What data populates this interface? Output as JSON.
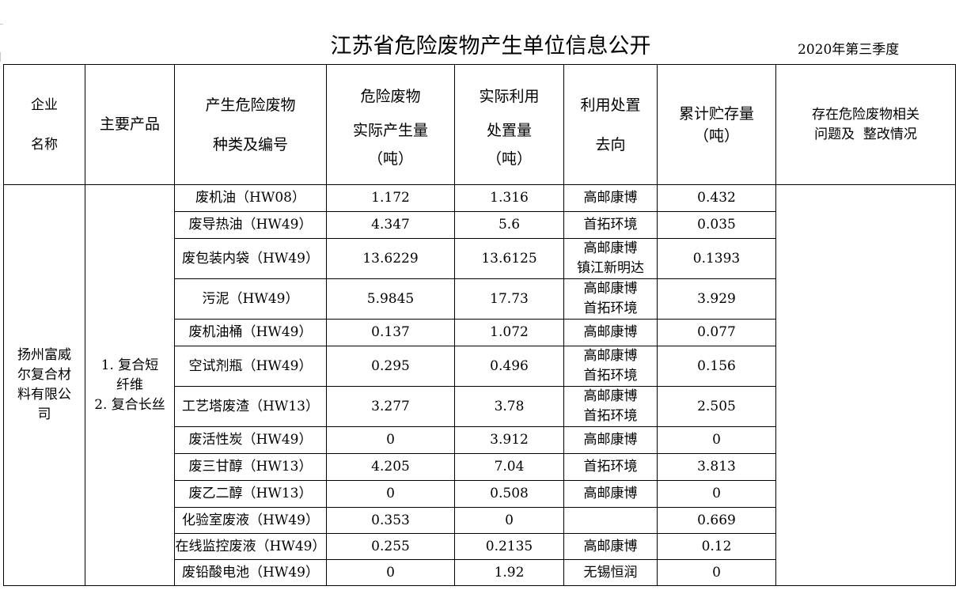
{
  "title": "江苏省危险废物产生单位信息公开",
  "season": "2020年第三季度",
  "headers": {
    "company": [
      "企业",
      "名称"
    ],
    "product": "主要产品",
    "waste_type": [
      "产生危险废物",
      "种类及编号"
    ],
    "generated": [
      "危险废物",
      "实际产生量",
      "（吨）"
    ],
    "utilized": [
      "实际利用",
      "处置量",
      "（吨）"
    ],
    "destination": [
      "利用处置",
      "去向"
    ],
    "stored": [
      "累计贮存量",
      "（吨）"
    ],
    "problem": [
      "存在危险废物相关",
      "问题及  整改情况"
    ]
  },
  "company": [
    "扬州富威",
    "尔复合材",
    "料有限公",
    "司"
  ],
  "products": [
    "1. 复合短",
    "纤维",
    "2. 复合长丝"
  ],
  "rows": [
    {
      "waste": "废机油（HW08）",
      "generated": "1.172",
      "utilized": "1.316",
      "dest": [
        "高邮康博"
      ],
      "stored": "0.432"
    },
    {
      "waste": "废导热油（HW49）",
      "generated": "4.347",
      "utilized": "5.6",
      "dest": [
        "首拓环境"
      ],
      "stored": "0.035"
    },
    {
      "waste": "废包装内袋（HW49）",
      "generated": "13.6229",
      "utilized": "13.6125",
      "dest": [
        "高邮康博",
        "镇江新明达"
      ],
      "stored": "0.1393"
    },
    {
      "waste": "污泥（HW49）",
      "generated": "5.9845",
      "utilized": "17.73",
      "dest": [
        "高邮康博",
        "首拓环境"
      ],
      "stored": "3.929"
    },
    {
      "waste": "废机油桶（HW49）",
      "generated": "0.137",
      "utilized": "1.072",
      "dest": [
        "高邮康博"
      ],
      "stored": "0.077"
    },
    {
      "waste": "空试剂瓶（HW49）",
      "generated": "0.295",
      "utilized": "0.496",
      "dest": [
        "高邮康博",
        "首拓环境"
      ],
      "stored": "0.156"
    },
    {
      "waste": "工艺塔废渣（HW13）",
      "generated": "3.277",
      "utilized": "3.78",
      "dest": [
        "高邮康博",
        "首拓环境"
      ],
      "stored": "2.505"
    },
    {
      "waste": "废活性炭（HW49）",
      "generated": "0",
      "utilized": "3.912",
      "dest": [
        "高邮康博"
      ],
      "stored": "0"
    },
    {
      "waste": "废三甘醇（HW13）",
      "generated": "4.205",
      "utilized": "7.04",
      "dest": [
        "首拓环境"
      ],
      "stored": "3.813"
    },
    {
      "waste": "废乙二醇（HW13）",
      "generated": "0",
      "utilized": "0.508",
      "dest": [
        "高邮康博"
      ],
      "stored": "0"
    },
    {
      "waste": "化验室废液（HW49）",
      "generated": "0.353",
      "utilized": "0",
      "dest": [
        ""
      ],
      "stored": "0.669"
    },
    {
      "waste": "在线监控废液（HW49）",
      "generated": "0.255",
      "utilized": "0.2135",
      "dest": [
        "高邮康博"
      ],
      "stored": "0.12"
    },
    {
      "waste": "废铅酸电池（HW49）",
      "generated": "0",
      "utilized": "1.92",
      "dest": [
        "无锡恒润"
      ],
      "stored": "0"
    }
  ]
}
